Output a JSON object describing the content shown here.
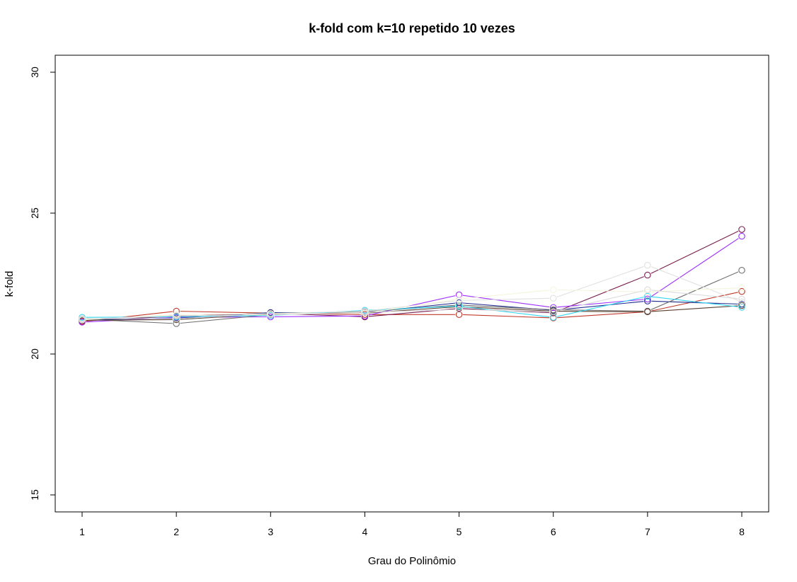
{
  "chart_data": {
    "type": "line",
    "title": "k-fold com k=10 repetido 10 vezes",
    "xlabel": "Grau do Polinômio",
    "ylabel": "k-fold",
    "x": [
      1,
      2,
      3,
      4,
      5,
      6,
      7,
      8
    ],
    "xlim": [
      1,
      8
    ],
    "ylim": [
      15,
      30
    ],
    "xticks": [
      "1",
      "2",
      "3",
      "4",
      "5",
      "6",
      "7",
      "8"
    ],
    "yticks": [
      "15",
      "20",
      "25",
      "30"
    ],
    "grid": false,
    "legend": "none",
    "markers": "open-circle",
    "series": [
      {
        "color": "#c0392b",
        "values": [
          21.15,
          21.52,
          21.45,
          21.4,
          21.4,
          21.28,
          21.5,
          22.22
        ]
      },
      {
        "color": "#7a1f4f",
        "values": [
          21.18,
          21.34,
          21.45,
          21.32,
          21.62,
          21.46,
          22.8,
          24.42
        ]
      },
      {
        "color": "#9b30ff",
        "values": [
          21.13,
          21.3,
          21.32,
          21.35,
          22.1,
          21.65,
          21.95,
          24.18
        ]
      },
      {
        "color": "#1e2a8c",
        "values": [
          21.22,
          21.27,
          21.47,
          21.47,
          21.82,
          21.55,
          21.88,
          21.77
        ]
      },
      {
        "color": "#707070",
        "values": [
          21.24,
          21.08,
          21.4,
          21.5,
          21.74,
          21.57,
          21.52,
          22.97
        ]
      },
      {
        "color": "#5a4030",
        "values": [
          21.2,
          21.22,
          21.42,
          21.45,
          21.68,
          21.52,
          21.5,
          21.72
        ]
      },
      {
        "color": "#33d6f0",
        "values": [
          21.3,
          21.32,
          21.37,
          21.55,
          21.7,
          21.3,
          22.05,
          21.66
        ]
      },
      {
        "color": "#e0e0e0",
        "values": [
          21.26,
          21.25,
          21.44,
          21.52,
          21.9,
          21.98,
          23.15,
          21.85
        ]
      },
      {
        "color": "#f5f5dc",
        "values": [
          21.21,
          21.4,
          21.43,
          21.45,
          21.95,
          22.28,
          22.2,
          22.35
        ]
      },
      {
        "color": "#dcdcdc",
        "values": [
          21.24,
          21.36,
          21.39,
          21.48,
          21.58,
          21.5,
          22.28,
          21.95
        ]
      }
    ]
  }
}
